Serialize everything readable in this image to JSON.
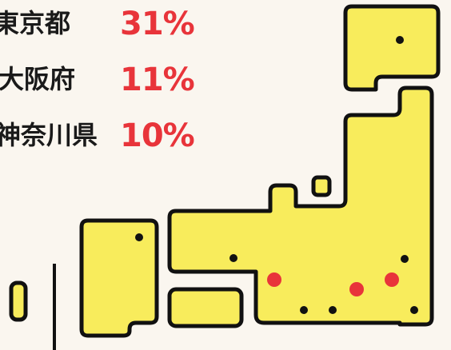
{
  "ranking": [
    {
      "label": "東京都",
      "value": "31%"
    },
    {
      "label": "大阪府",
      "value": "11%"
    },
    {
      "label": "神奈川県",
      "value": "10%"
    }
  ]
}
